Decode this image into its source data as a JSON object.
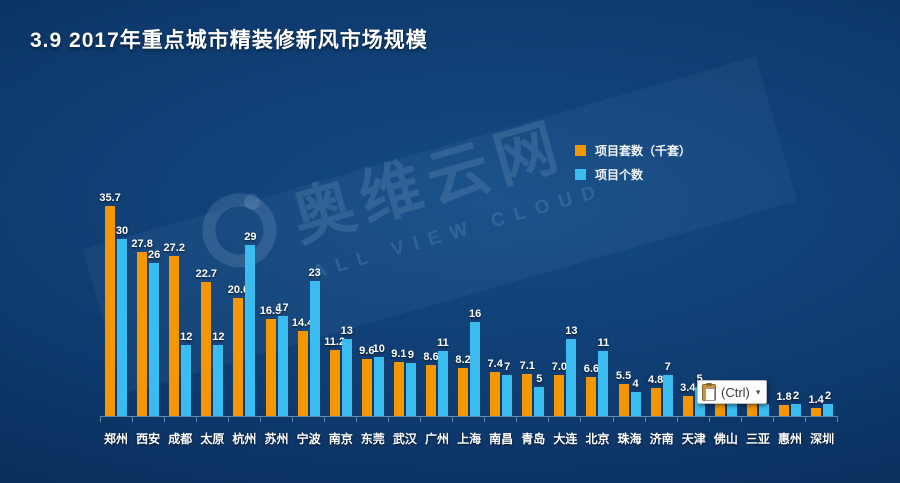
{
  "title": "3.9  2017年重点城市精装修新风市场规模",
  "legend": {
    "items": [
      {
        "label": "项目套数（千套）",
        "color": "#F49600"
      },
      {
        "label": "项目个数",
        "color": "#3CBCEE"
      }
    ]
  },
  "watermark": {
    "cn": "奥维云网",
    "en": "ALL VIEW CLOUD"
  },
  "paste_tooltip": {
    "label": "(Ctrl)",
    "arrow": "▾"
  },
  "chart_data": {
    "type": "bar",
    "title": "2017年重点城市精装修新风市场规模",
    "categories": [
      "郑州",
      "西安",
      "成都",
      "太原",
      "杭州",
      "苏州",
      "宁波",
      "南京",
      "东莞",
      "武汉",
      "广州",
      "上海",
      "南昌",
      "青岛",
      "大连",
      "北京",
      "珠海",
      "济南",
      "天津",
      "佛山",
      "三亚",
      "惠州",
      "深圳"
    ],
    "series": [
      {
        "name": "项目套数（千套）",
        "color": "#F49600",
        "values": [
          35.7,
          27.8,
          27.2,
          22.7,
          20.0,
          16.5,
          14.4,
          11.2,
          9.6,
          9.1,
          8.6,
          8.2,
          7.4,
          7.1,
          7.0,
          6.6,
          5.5,
          4.8,
          3.4,
          3.3,
          2.0,
          1.8,
          1.4
        ],
        "labels": [
          "35.7",
          "27.8",
          "27.2",
          "22.7",
          "20.0",
          "16.5",
          "14.4",
          "11.2",
          "9.6",
          "9.1",
          "8.6",
          "8.2",
          "7.4",
          "7.1",
          "7.0",
          "6.6",
          "5.5",
          "4.8",
          "3.4",
          "3.3",
          "2.0",
          "1.8",
          "1.4"
        ]
      },
      {
        "name": "项目个数",
        "color": "#3CBCEE",
        "values": [
          30,
          26,
          12,
          12,
          29,
          17,
          23,
          13,
          10,
          9,
          11,
          16,
          7,
          5,
          13,
          11,
          4,
          7,
          5,
          3,
          2,
          2,
          2
        ],
        "labels": [
          "30",
          "26",
          "12",
          "12",
          "29",
          "17",
          "23",
          "13",
          "10",
          "9",
          "11",
          "16",
          "7",
          "5",
          "13",
          "11",
          "4",
          "7",
          "5",
          "3",
          "2",
          "2",
          "2"
        ]
      }
    ],
    "ylim": [
      0,
      36
    ],
    "value_labels": true,
    "grid": false,
    "legend_position": "top-right",
    "labels_hidden_by_tooltip": [
      "佛山-项目个数",
      "三亚-项目套数（千套）",
      "三亚-项目个数"
    ]
  }
}
